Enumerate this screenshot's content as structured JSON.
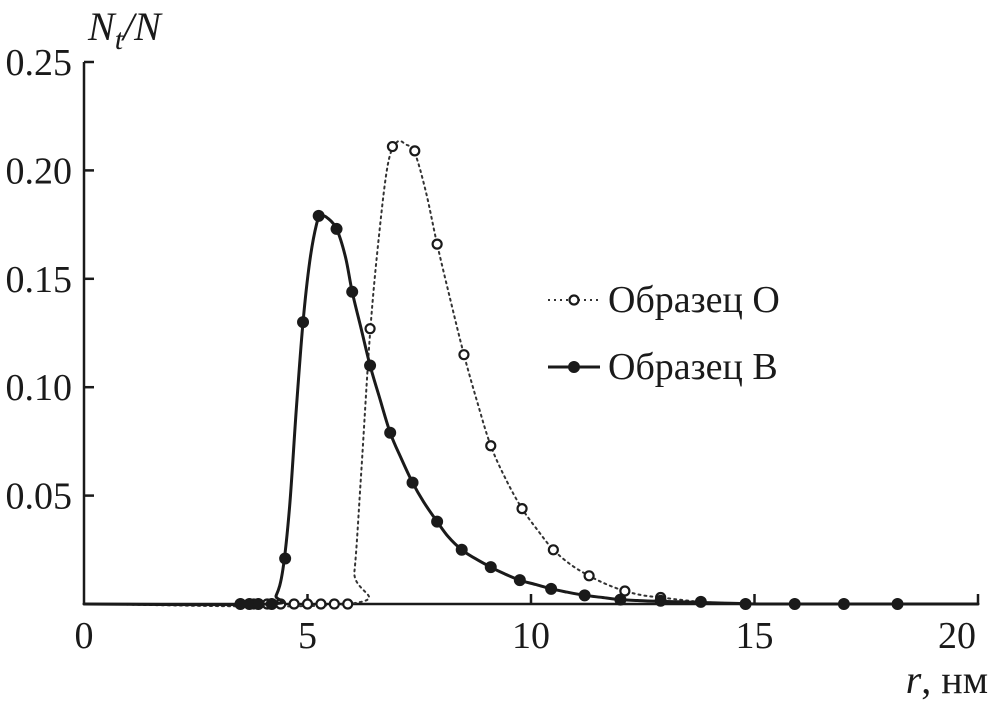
{
  "chart_data": {
    "type": "line",
    "title": "",
    "ylabel": {
      "main": "N",
      "sub": "t",
      "rest": "/N"
    },
    "xlabel": {
      "var": "r",
      "unit": ", нм"
    },
    "xlim": [
      0,
      20
    ],
    "ylim": [
      0,
      0.25
    ],
    "x_ticks": [
      "0",
      "5",
      "10",
      "15",
      "20"
    ],
    "y_ticks": [
      "0.05",
      "0.10",
      "0.15",
      "0.20",
      "0.25"
    ],
    "grid": false,
    "legend_position": "right",
    "series": [
      {
        "name": "Образец O",
        "marker": "open-circle",
        "line_style": "dotted",
        "color": "#333333",
        "points": [
          [
            3.5,
            0
          ],
          [
            3.8,
            0
          ],
          [
            4.1,
            0
          ],
          [
            4.4,
            0
          ],
          [
            4.7,
            0
          ],
          [
            5.0,
            0
          ],
          [
            5.3,
            0
          ],
          [
            5.6,
            0
          ],
          [
            5.9,
            0
          ],
          [
            6.4,
            0.127
          ],
          [
            6.9,
            0.211
          ],
          [
            7.4,
            0.209
          ],
          [
            7.9,
            0.166
          ],
          [
            8.5,
            0.115
          ],
          [
            9.1,
            0.073
          ],
          [
            9.8,
            0.044
          ],
          [
            10.5,
            0.025
          ],
          [
            11.3,
            0.013
          ],
          [
            12.1,
            0.006
          ],
          [
            12.9,
            0.003
          ],
          [
            13.8,
            0.001
          ],
          [
            14.8,
            0.0
          ],
          [
            15.9,
            0.0
          ],
          [
            17.0,
            0.0
          ],
          [
            18.2,
            0.0
          ]
        ],
        "curve": [
          [
            0,
            0
          ],
          [
            5.9,
            0
          ],
          [
            6.05,
            0.015
          ],
          [
            6.2,
            0.06
          ],
          [
            6.4,
            0.125
          ],
          [
            6.6,
            0.17
          ],
          [
            6.8,
            0.203
          ],
          [
            7.0,
            0.213
          ],
          [
            7.2,
            0.212
          ],
          [
            7.4,
            0.208
          ],
          [
            7.65,
            0.19
          ],
          [
            7.9,
            0.166
          ],
          [
            8.2,
            0.14
          ],
          [
            8.5,
            0.115
          ],
          [
            8.8,
            0.093
          ],
          [
            9.1,
            0.073
          ],
          [
            9.45,
            0.057
          ],
          [
            9.8,
            0.044
          ],
          [
            10.15,
            0.034
          ],
          [
            10.5,
            0.025
          ],
          [
            10.9,
            0.018
          ],
          [
            11.3,
            0.013
          ],
          [
            11.7,
            0.009
          ],
          [
            12.1,
            0.006
          ],
          [
            12.5,
            0.004
          ],
          [
            12.9,
            0.003
          ],
          [
            13.4,
            0.0018
          ],
          [
            13.8,
            0.001
          ],
          [
            14.3,
            0.0005
          ],
          [
            14.8,
            0.0002
          ],
          [
            15.5,
            0.0
          ],
          [
            20,
            0
          ]
        ]
      },
      {
        "name": "Образец B",
        "marker": "filled-circle",
        "line_style": "solid",
        "color": "#1a1a1a",
        "points": [
          [
            3.5,
            0
          ],
          [
            3.7,
            0
          ],
          [
            3.9,
            0
          ],
          [
            4.2,
            0
          ],
          [
            4.5,
            0.021
          ],
          [
            4.9,
            0.13
          ],
          [
            5.25,
            0.179
          ],
          [
            5.65,
            0.173
          ],
          [
            6.0,
            0.144
          ],
          [
            6.4,
            0.11
          ],
          [
            6.85,
            0.079
          ],
          [
            7.35,
            0.056
          ],
          [
            7.9,
            0.038
          ],
          [
            8.45,
            0.025
          ],
          [
            9.1,
            0.017
          ],
          [
            9.75,
            0.011
          ],
          [
            10.45,
            0.007
          ],
          [
            11.2,
            0.004
          ],
          [
            12.0,
            0.002
          ],
          [
            12.9,
            0.0015
          ],
          [
            13.8,
            0.001
          ],
          [
            14.8,
            0.0
          ],
          [
            15.9,
            0.0
          ],
          [
            17.0,
            0.0
          ],
          [
            18.2,
            0.0
          ]
        ],
        "curve": [
          [
            0,
            0
          ],
          [
            4.1,
            0
          ],
          [
            4.3,
            0.004
          ],
          [
            4.45,
            0.016
          ],
          [
            4.6,
            0.045
          ],
          [
            4.75,
            0.09
          ],
          [
            4.9,
            0.13
          ],
          [
            5.05,
            0.158
          ],
          [
            5.2,
            0.175
          ],
          [
            5.3,
            0.179
          ],
          [
            5.45,
            0.178
          ],
          [
            5.65,
            0.173
          ],
          [
            5.85,
            0.16
          ],
          [
            6.0,
            0.144
          ],
          [
            6.2,
            0.127
          ],
          [
            6.4,
            0.11
          ],
          [
            6.6,
            0.096
          ],
          [
            6.85,
            0.079
          ],
          [
            7.1,
            0.067
          ],
          [
            7.35,
            0.056
          ],
          [
            7.6,
            0.047
          ],
          [
            7.9,
            0.038
          ],
          [
            8.15,
            0.031
          ],
          [
            8.45,
            0.025
          ],
          [
            8.75,
            0.021
          ],
          [
            9.1,
            0.017
          ],
          [
            9.4,
            0.014
          ],
          [
            9.75,
            0.011
          ],
          [
            10.1,
            0.009
          ],
          [
            10.45,
            0.007
          ],
          [
            10.8,
            0.0055
          ],
          [
            11.2,
            0.004
          ],
          [
            11.6,
            0.003
          ],
          [
            12.0,
            0.002
          ],
          [
            12.5,
            0.0015
          ],
          [
            12.9,
            0.0012
          ],
          [
            13.4,
            0.001
          ],
          [
            13.8,
            0.0007
          ],
          [
            14.3,
            0.0004
          ],
          [
            14.8,
            0.0002
          ],
          [
            15.5,
            0.0
          ],
          [
            20,
            0
          ]
        ]
      }
    ]
  }
}
